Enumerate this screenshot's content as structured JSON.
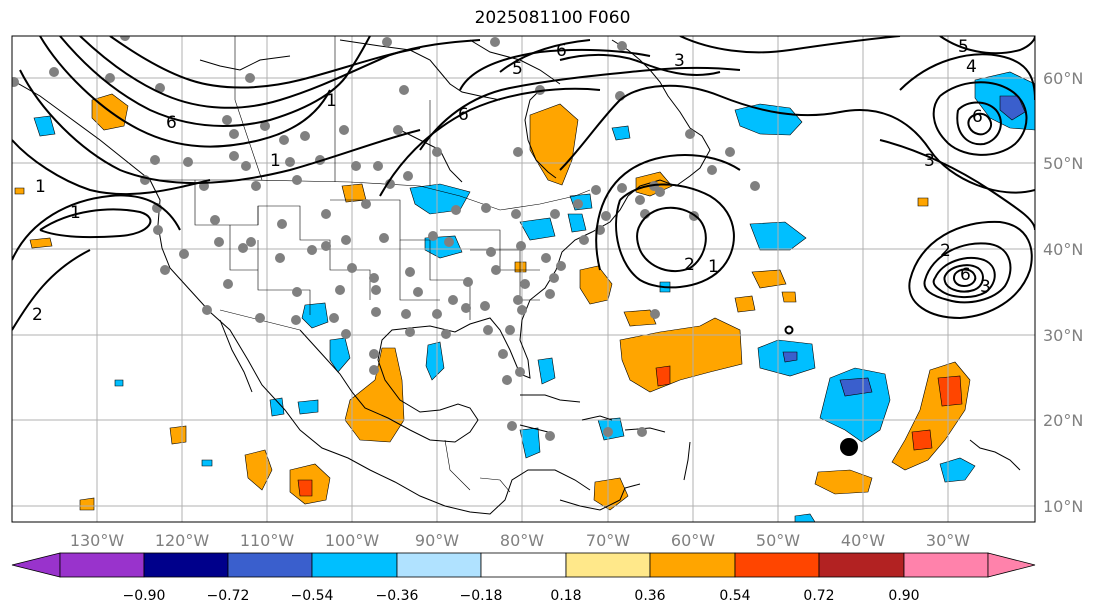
{
  "title": "2025081100 F060",
  "map": {
    "lon_labels": [
      "130°W",
      "120°W",
      "110°W",
      "100°W",
      "90°W",
      "80°W",
      "70°W",
      "60°W",
      "50°W",
      "40°W",
      "30°W"
    ],
    "lat_labels": [
      "60°N",
      "50°N",
      "40°N",
      "30°N",
      "20°N",
      "10°N"
    ],
    "contour_labels": [
      "1",
      "1",
      "2",
      "6",
      "1",
      "6",
      "5",
      "6",
      "3",
      "1",
      "2",
      "1",
      "5",
      "4",
      "6",
      "3",
      "2",
      "6",
      "3"
    ],
    "storm_marker": "tropical-cyclone-position"
  },
  "colorbar": {
    "tick_labels": [
      "−0.90",
      "−0.72",
      "−0.54",
      "−0.36",
      "−0.18",
      "0.18",
      "0.36",
      "0.54",
      "0.72",
      "0.90"
    ],
    "colors": {
      "lt_neg090": "#9933cc",
      "neg090_072": "#00008b",
      "neg072_054": "#3a5fcd",
      "neg054_036": "#00bfff",
      "neg036_018": "#b0e2ff",
      "neg018_018": "#ffffff",
      "p018_036": "#ffe88a",
      "p036_054": "#ffa500",
      "p054_072": "#ff4500",
      "p072_090": "#b22222",
      "gt_090": "#ff82ab"
    }
  }
}
